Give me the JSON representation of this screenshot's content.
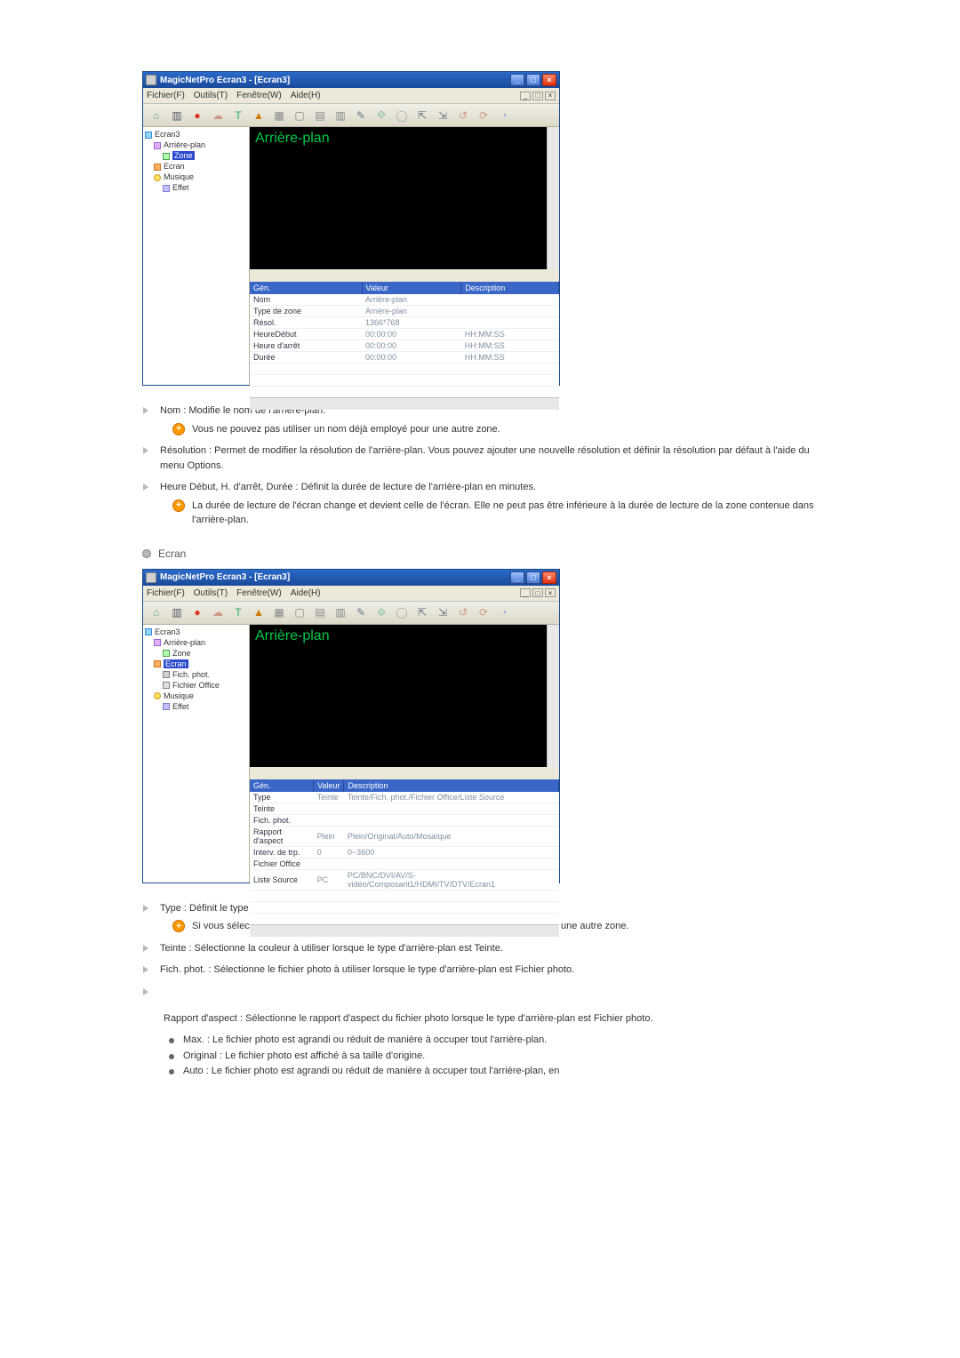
{
  "screenshots": [
    {
      "title": "MagicNetPro Ecran3 - [Ecran3]",
      "menus": [
        "Fichier(F)",
        "Outils(T)",
        "Fenêtre(W)",
        "Aide(H)"
      ],
      "preview_label": "Arrière-plan",
      "tree": [
        {
          "ind": 0,
          "ico": "screen",
          "label": "Ecran3"
        },
        {
          "ind": 1,
          "ico": "bg",
          "label": "Arrière-plan"
        },
        {
          "ind": 2,
          "ico": "zone",
          "label": "Zone",
          "sel": true
        },
        {
          "ind": 1,
          "ico": "screen2",
          "label": "Ecran"
        },
        {
          "ind": 1,
          "ico": "music",
          "label": "Musique"
        },
        {
          "ind": 2,
          "ico": "effect",
          "label": "Effet"
        }
      ],
      "grid_headers": [
        "Gén.",
        "Valeur",
        "Description"
      ],
      "grid_rows": [
        [
          "Nom",
          "Arrière-plan",
          ""
        ],
        [
          "Type de zone",
          "Arrière-plan",
          ""
        ],
        [
          "Résol.",
          "1366*768",
          ""
        ],
        [
          "HeureDébut",
          "00:00:00",
          "HH:MM:SS"
        ],
        [
          "Heure d'arrêt",
          "00:00:00",
          "HH:MM:SS"
        ],
        [
          "Durée",
          "00:00:00",
          "HH:MM:SS"
        ]
      ]
    },
    {
      "title": "MagicNetPro Ecran3 - [Ecran3]",
      "menus": [
        "Fichier(F)",
        "Outils(T)",
        "Fenêtre(W)",
        "Aide(H)"
      ],
      "preview_label": "Arrière-plan",
      "tree": [
        {
          "ind": 0,
          "ico": "screen",
          "label": "Ecran3"
        },
        {
          "ind": 1,
          "ico": "bg",
          "label": "Arrière-plan"
        },
        {
          "ind": 2,
          "ico": "zone",
          "label": "Zone"
        },
        {
          "ind": 1,
          "ico": "screen2",
          "label": "Ecran",
          "sel": true
        },
        {
          "ind": 2,
          "ico": "img",
          "label": "Fich. phot."
        },
        {
          "ind": 2,
          "ico": "office",
          "label": "Fichier Office"
        },
        {
          "ind": 1,
          "ico": "music",
          "label": "Musique"
        },
        {
          "ind": 2,
          "ico": "effect",
          "label": "Effet"
        }
      ],
      "grid_headers": [
        "Gén.",
        "Valeur",
        "Description"
      ],
      "grid_rows": [
        [
          "Type",
          "Teinte",
          "Teinte/Fich. phot./Fichier Office/Liste Source"
        ],
        [
          "Teinte",
          "",
          ""
        ],
        [
          "Fich. phot.",
          "",
          ""
        ],
        [
          "Rapport d'aspect",
          "Plein",
          "Plein/Original/Auto/Mosaïque"
        ],
        [
          "Interv. de trp.",
          "0",
          "0~3600"
        ],
        [
          "Fichier Office",
          "",
          ""
        ],
        [
          "Liste Source",
          "PC",
          "PC/BNC/DVI/AV/S-vidéo/Composant1/HDMI/TV/DTV/Ecran1"
        ]
      ]
    }
  ],
  "toolbar_glyphs": [
    "⌂",
    "▥",
    "●",
    "☁",
    "T",
    "▲",
    "▦",
    "▢",
    "▤",
    "▥",
    "✎",
    "⟐",
    "◯",
    "⇱",
    "⇲",
    "↺",
    "⟳",
    "◔"
  ],
  "toolbar_colors": [
    "#5a8",
    "#556",
    "#e03020",
    "#c98",
    "#2a6",
    "#c70",
    "#888",
    "#888",
    "#888",
    "#888",
    "#678",
    "#4a8",
    "#aaa",
    "#678",
    "#678",
    "#c98",
    "#c98",
    "#9ad"
  ],
  "doc1": [
    {
      "text": "Nom : Modifie le nom de l'arrière-plan.",
      "note": "Vous ne pouvez pas utiliser un nom déjà employé pour une autre zone."
    },
    {
      "text": "Résolution : Permet de modifier la résolution de l'arrière-plan. Vous pouvez ajouter une nouvelle résolution et définir la résolution par défaut à l'aide du menu Options."
    },
    {
      "text": "Heure Début, H. d'arrêt, Durée : Définit la durée de lecture de l'arrière-plan en minutes.",
      "note": "La durée de lecture de l'écran change et devient celle de l'écran. Elle ne peut pas être inférieure à la durée de lecture de la zone contenue dans l'arrière-plan."
    }
  ],
  "section2_title": "Ecran",
  "doc2": [
    {
      "text": "Type : Définit le type d'arrière-plan (Teinte, Fichier photo, Fichier Office, Liste Source).",
      "note": "Si vous sélectionnez un fichier Office ou une liste source, vous ne pouvez pas définir une autre zone."
    },
    {
      "text": "Teinte : Sélectionne la couleur à utiliser lorsque le type d'arrière-plan est Teinte."
    },
    {
      "text": "Fich. phot. : Sélectionne le fichier photo à utiliser lorsque le type d'arrière-plan est Fichier photo."
    },
    {
      "text": ""
    }
  ],
  "rapport_text": "Rapport d'aspect : Sélectionne le rapport d'aspect du fichier photo lorsque le type d'arrière-plan est Fichier photo.",
  "rapport_sub": [
    "Max. : Le fichier photo est agrandi ou réduit de manière à occuper tout l'arrière-plan.",
    "Original : Le fichier photo est affiché à sa taille d'origine.",
    "Auto : Le fichier photo est agrandi ou réduit de manière à occuper tout l'arrière-plan, en"
  ]
}
